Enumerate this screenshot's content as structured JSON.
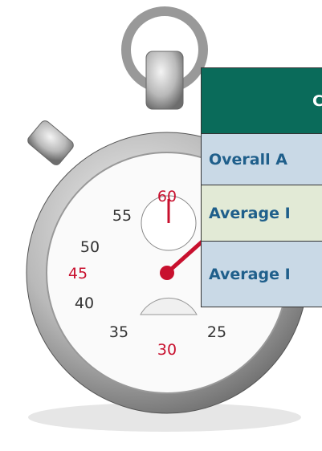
{
  "dial": {
    "numbers": [
      "60",
      "55",
      "50",
      "45",
      "40",
      "35",
      "30",
      "25"
    ]
  },
  "table": {
    "header": "C",
    "rows": [
      "Overall A",
      "Average I",
      "Average I"
    ]
  }
}
